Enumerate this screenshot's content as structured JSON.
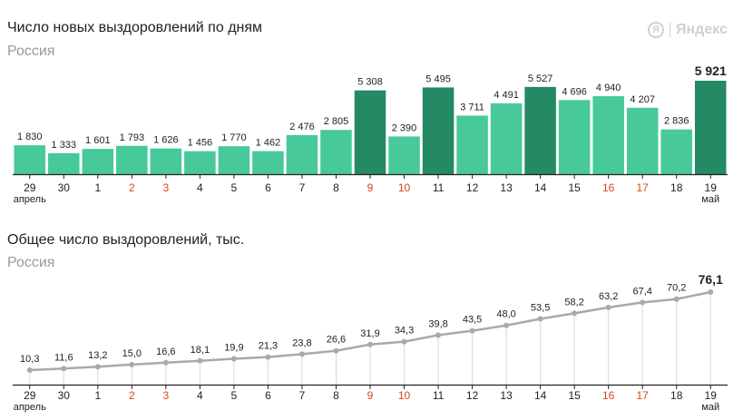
{
  "colors": {
    "light_bar": "#47c99a",
    "dark_bar": "#238a63",
    "line": "#a8a8b4",
    "weekend": "#d9451a",
    "axis": "#222222",
    "grid": "#d8d8d8"
  },
  "brand": {
    "logo_icon": "yandex-logo-icon",
    "glyph": "Я",
    "name": "Яндекс"
  },
  "chart_data": [
    {
      "type": "bar",
      "title": "Число новых выздоровлений по дням",
      "subtitle": "Россия",
      "categories": [
        "29",
        "30",
        "1",
        "2",
        "3",
        "4",
        "5",
        "6",
        "7",
        "8",
        "9",
        "10",
        "11",
        "12",
        "13",
        "14",
        "15",
        "16",
        "17",
        "18",
        "19"
      ],
      "month_labels": [
        {
          "index": 0,
          "text": "апрель"
        },
        {
          "index": 20,
          "text": "май"
        }
      ],
      "weekend_indices": [
        3,
        4,
        10,
        11,
        17,
        18
      ],
      "values": [
        1830,
        1333,
        1601,
        1793,
        1626,
        1456,
        1770,
        1462,
        2476,
        2805,
        5308,
        2390,
        5495,
        3711,
        4491,
        5527,
        4696,
        4940,
        4207,
        2836,
        5921
      ],
      "value_labels": [
        "1 830",
        "1 333",
        "1 601",
        "1 793",
        "1 626",
        "1 456",
        "1 770",
        "1 462",
        "2 476",
        "2 805",
        "5 308",
        "2 390",
        "5 495",
        "3 711",
        "4 491",
        "5 527",
        "4 696",
        "4 940",
        "4 207",
        "2 836",
        "5 921"
      ],
      "dark_indices": [
        10,
        12,
        15,
        20
      ],
      "highlight_last": true
    },
    {
      "type": "line",
      "title": "Общее число выздоровлений, тыс.",
      "subtitle": "Россия",
      "categories": [
        "29",
        "30",
        "1",
        "2",
        "3",
        "4",
        "5",
        "6",
        "7",
        "8",
        "9",
        "10",
        "11",
        "12",
        "13",
        "14",
        "15",
        "16",
        "17",
        "18",
        "19"
      ],
      "month_labels": [
        {
          "index": 0,
          "text": "апрель"
        },
        {
          "index": 20,
          "text": "май"
        }
      ],
      "weekend_indices": [
        3,
        4,
        10,
        11,
        17,
        18
      ],
      "values": [
        10.3,
        11.6,
        13.2,
        15.0,
        16.6,
        18.1,
        19.9,
        21.3,
        23.8,
        26.6,
        31.9,
        34.3,
        39.8,
        43.5,
        48.0,
        53.5,
        58.2,
        63.2,
        67.4,
        70.2,
        76.1
      ],
      "value_labels": [
        "10,3",
        "11,6",
        "13,2",
        "15,0",
        "16,6",
        "18,1",
        "19,9",
        "21,3",
        "23,8",
        "26,6",
        "31,9",
        "34,3",
        "39,8",
        "43,5",
        "48,0",
        "53,5",
        "58,2",
        "63,2",
        "67,4",
        "70,2",
        "76,1"
      ],
      "highlight_last": true
    }
  ]
}
